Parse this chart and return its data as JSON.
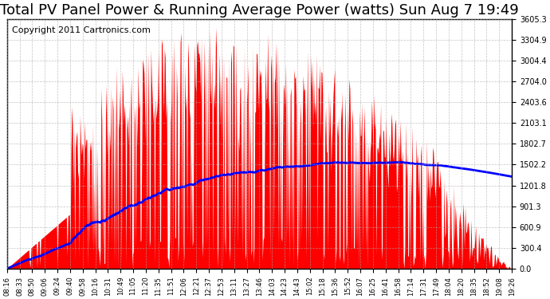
{
  "title": "Total PV Panel Power & Running Average Power (watts) Sun Aug 7 19:49",
  "copyright": "Copyright 2011 Cartronics.com",
  "bar_color": "#FF0000",
  "line_color": "#0000FF",
  "background_color": "#FFFFFF",
  "grid_color": "#AAAAAA",
  "ymax": 3605.3,
  "ymin": 0.0,
  "yticks": [
    0.0,
    300.4,
    600.9,
    901.3,
    1201.8,
    1502.2,
    1802.7,
    2103.1,
    2403.6,
    2704.0,
    3004.4,
    3304.9,
    3605.3
  ],
  "xtick_labels": [
    "08:16",
    "08:33",
    "08:50",
    "09:06",
    "09:24",
    "09:40",
    "09:58",
    "10:16",
    "10:31",
    "10:49",
    "11:05",
    "11:20",
    "11:35",
    "11:51",
    "12:06",
    "12:21",
    "12:37",
    "12:53",
    "13:11",
    "13:27",
    "13:46",
    "14:03",
    "14:23",
    "14:43",
    "15:02",
    "15:18",
    "15:36",
    "15:52",
    "16:07",
    "16:25",
    "16:41",
    "16:58",
    "17:14",
    "17:31",
    "17:49",
    "18:04",
    "18:20",
    "18:35",
    "18:52",
    "19:08",
    "19:26"
  ],
  "title_fontsize": 13,
  "copyright_fontsize": 8
}
